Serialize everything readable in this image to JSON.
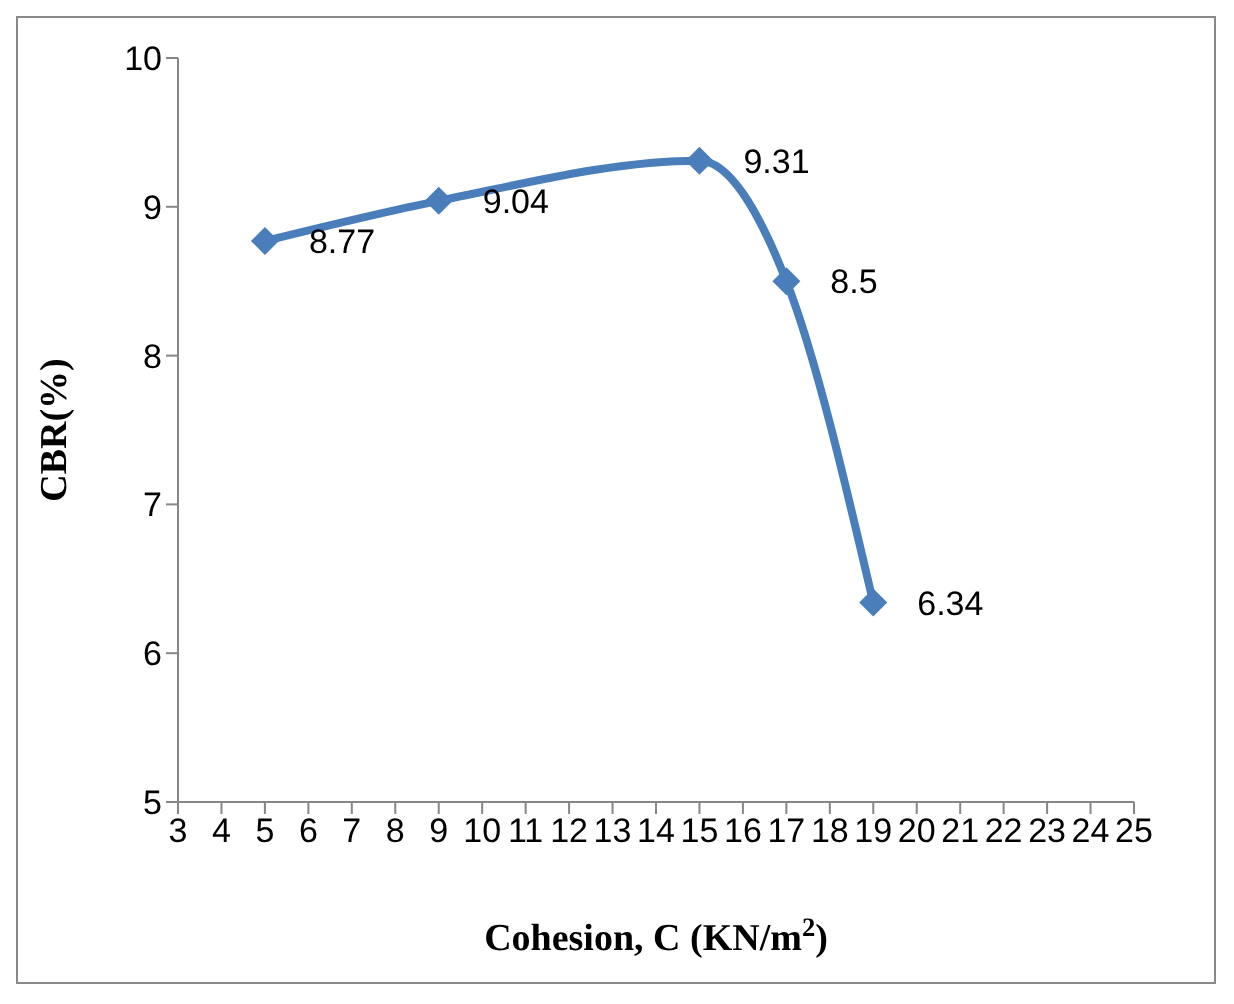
{
  "chart_data": {
    "type": "line",
    "xlabel": "Cohesion, C (KN/m$^{2}$)",
    "ylabel": "CBR(%)",
    "x": [
      5,
      9,
      15,
      17,
      19
    ],
    "series": [
      {
        "color": "#4a7ebb",
        "values": [
          8.77,
          9.04,
          9.31,
          8.5,
          6.34
        ]
      }
    ],
    "xlim": [
      3,
      25
    ],
    "xticks": [
      3,
      4,
      5,
      6,
      7,
      8,
      9,
      10,
      11,
      12,
      13,
      14,
      15,
      16,
      17,
      18,
      19,
      20,
      21,
      22,
      23,
      24,
      25
    ],
    "ylim": [
      5,
      10
    ],
    "yticks": [
      5,
      6,
      7,
      8,
      9,
      10
    ],
    "marker": "diamond",
    "data_labels": true,
    "grid": false
  }
}
